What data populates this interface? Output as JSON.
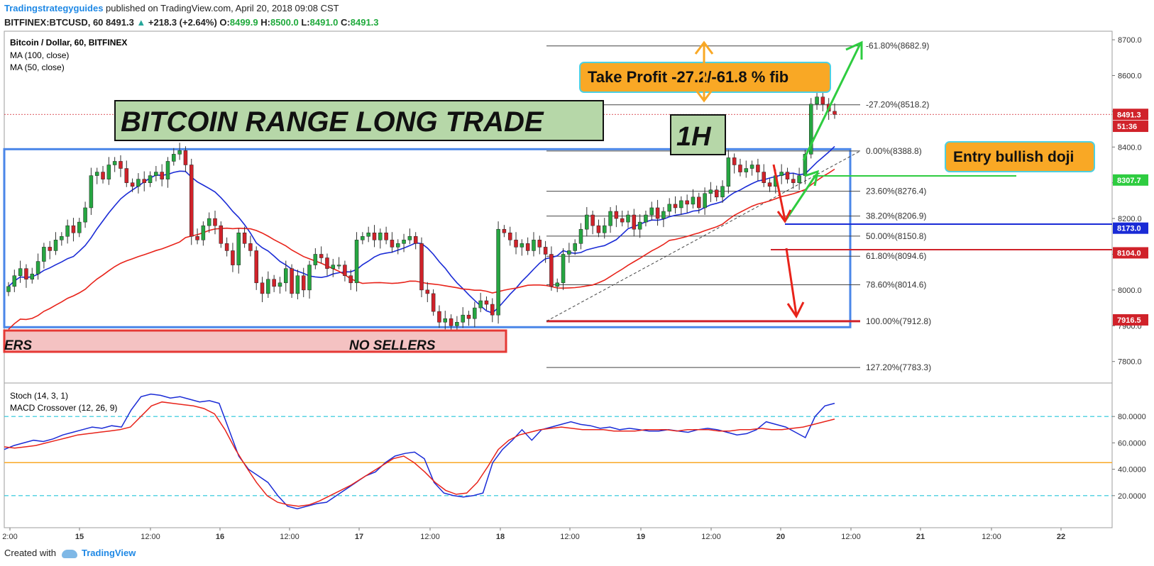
{
  "header": {
    "author": "Tradingstrategyguides",
    "published": "published on TradingView.com, April 20, 2018 09:08 CST",
    "symbol": "BITFINEX:BTCUSD, 60",
    "last": "8491.3",
    "change_arrow": "▲",
    "change": "+218.3 (+2.64%)",
    "o_label": "O:",
    "o": "8499.9",
    "h_label": "H:",
    "h": "8500.0",
    "l_label": "L:",
    "l": "8491.0",
    "c_label": "C:",
    "c": "8491.3"
  },
  "legend": {
    "title": "Bitcoin / Dollar, 60, BITFINEX",
    "ma100": "MA (100, close)",
    "ma50": "MA (50, close)",
    "stoch": "Stoch (14, 3, 1)",
    "macd": "MACD Crossover (12, 26, 9)"
  },
  "annotations": {
    "title": "BITCOIN RANGE LONG TRADE",
    "timeframe": "1H",
    "take_profit": "Take Profit -27.2/-61.8 % fib",
    "entry": "Entry bullish doji",
    "no_sellers": "NO SELLERS",
    "sellers_cut": "ERS"
  },
  "footer": {
    "created": "Created with",
    "brand": "TradingView"
  },
  "colors": {
    "bull": "#26a641",
    "bear": "#d0222a",
    "ma_blue": "#1a2bd6",
    "ma_red": "#e8231a",
    "box_blue": "#4a86e8",
    "green_box": "#b6d7a8",
    "orange": "#f9a825",
    "cyan": "#26c6da"
  },
  "chart_data": [
    {
      "type": "candlestick",
      "title": "Bitcoin / Dollar, 60, BITFINEX",
      "ylim": [
        7720,
        8720
      ],
      "y_ticks": [
        "8700.0",
        "8600.0",
        "8500.0",
        "8400.0",
        "8300.0",
        "8200.0",
        "8100.0",
        "8000.0",
        "7900.0",
        "7800.0"
      ],
      "x_ticks": [
        "2:00",
        "15",
        "12:00",
        "16",
        "12:00",
        "17",
        "12:00",
        "18",
        "12:00",
        "19",
        "12:00",
        "20",
        "12:00",
        "21",
        "12:00",
        "22"
      ],
      "candles_close": [
        8010,
        8040,
        8060,
        8030,
        8045,
        8080,
        8120,
        8110,
        8140,
        8150,
        8180,
        8160,
        8190,
        8230,
        8320,
        8330,
        8310,
        8350,
        8360,
        8340,
        8300,
        8290,
        8310,
        8300,
        8320,
        8330,
        8310,
        8360,
        8380,
        8390,
        8350,
        8150,
        8140,
        8180,
        8200,
        8180,
        8130,
        8110,
        8070,
        8160,
        8130,
        8110,
        8020,
        7990,
        8030,
        8010,
        8020,
        8060,
        7990,
        8040,
        8000,
        8070,
        8100,
        8090,
        8060,
        8070,
        8070,
        8040,
        8020,
        8140,
        8150,
        8160,
        8140,
        8160,
        8140,
        8120,
        8130,
        8140,
        8150,
        8130,
        8000,
        7990,
        7940,
        7910,
        7920,
        7900,
        7910,
        7930,
        7920,
        7950,
        7970,
        7960,
        7930,
        8170,
        8160,
        8140,
        8120,
        8130,
        8110,
        8140,
        8120,
        8100,
        8010,
        8020,
        8100,
        8110,
        8130,
        8170,
        8210,
        8180,
        8160,
        8180,
        8220,
        8200,
        8190,
        8210,
        8170,
        8190,
        8210,
        8230,
        8200,
        8220,
        8240,
        8230,
        8250,
        8240,
        8260,
        8230,
        8270,
        8280,
        8260,
        8290,
        8370,
        8350,
        8330,
        8340,
        8350,
        8330,
        8300,
        8290,
        8320,
        8330,
        8310,
        8300,
        8320,
        8380,
        8520,
        8540,
        8520,
        8500,
        8491
      ],
      "ma50_label": "MA (50, close)",
      "ma100_label": "MA (100, close)",
      "range_box": [
        7900,
        8390
      ],
      "fib_levels": [
        {
          "label": "-61.80%(8682.9)",
          "value": 8682.9
        },
        {
          "label": "-27.20%(8518.2)",
          "value": 8518.2
        },
        {
          "label": "0.00%(8388.8)",
          "value": 8388.8
        },
        {
          "label": "23.60%(8276.4)",
          "value": 8276.4
        },
        {
          "label": "38.20%(8206.9)",
          "value": 8206.9
        },
        {
          "label": "50.00%(8150.8)",
          "value": 8150.8
        },
        {
          "label": "61.80%(8094.6)",
          "value": 8094.6
        },
        {
          "label": "78.60%(8014.6)",
          "value": 8014.6
        },
        {
          "label": "100.00%(7912.8)",
          "value": 7912.8
        },
        {
          "label": "127.20%(7783.3)",
          "value": 7783.3
        }
      ],
      "price_tags": [
        {
          "label": "8491.3",
          "value": 8491.3,
          "color": "#d0222a"
        },
        {
          "label": "51:36",
          "value": 8458,
          "color": "#d0222a"
        },
        {
          "label": "8307.7",
          "value": 8307.7,
          "color": "#2ecc40"
        },
        {
          "label": "8173.0",
          "value": 8173.0,
          "color": "#1a2bd6"
        },
        {
          "label": "8104.0",
          "value": 8104.0,
          "color": "#d0222a"
        },
        {
          "label": "7916.5",
          "value": 7916.5,
          "color": "#d0222a"
        }
      ]
    },
    {
      "type": "line",
      "title": "Stoch (14, 3, 1)",
      "ylim": [
        0,
        100
      ],
      "y_ticks": [
        "80.0000",
        "60.0000",
        "40.0000",
        "20.0000"
      ],
      "levels": [
        80,
        45,
        20
      ],
      "series": [
        {
          "name": "Stoch (14, 3, 1)",
          "color": "#1a2bd6",
          "values": [
            55,
            58,
            60,
            62,
            61,
            63,
            66,
            68,
            70,
            72,
            71,
            73,
            72,
            85,
            95,
            97,
            96,
            94,
            95,
            93,
            91,
            92,
            90,
            70,
            50,
            40,
            35,
            30,
            20,
            12,
            10,
            12,
            14,
            15,
            20,
            25,
            30,
            35,
            38,
            45,
            50,
            52,
            53,
            48,
            30,
            22,
            20,
            19,
            20,
            22,
            45,
            55,
            62,
            70,
            62,
            70,
            72,
            74,
            76,
            74,
            73,
            71,
            72,
            70,
            71,
            70,
            69,
            69,
            70,
            69,
            68,
            70,
            71,
            70,
            68,
            66,
            67,
            70,
            76,
            74,
            72,
            68,
            64,
            80,
            88,
            90
          ]
        },
        {
          "name": "MACD Crossover (12, 26, 9)",
          "color": "#e8231a",
          "values": [
            57,
            56,
            57,
            58,
            60,
            62,
            64,
            66,
            67,
            68,
            69,
            70,
            72,
            80,
            88,
            91,
            90,
            89,
            88,
            86,
            82,
            70,
            55,
            42,
            30,
            20,
            15,
            13,
            12,
            13,
            16,
            20,
            24,
            28,
            33,
            38,
            43,
            48,
            50,
            45,
            38,
            30,
            24,
            21,
            22,
            30,
            42,
            55,
            62,
            66,
            68,
            70,
            71,
            72,
            71,
            70,
            70,
            70,
            69,
            69,
            69,
            70,
            70,
            70,
            69,
            70,
            70,
            70,
            69,
            69,
            70,
            70,
            71,
            70,
            70,
            71,
            72,
            74,
            76,
            78
          ]
        }
      ]
    }
  ]
}
